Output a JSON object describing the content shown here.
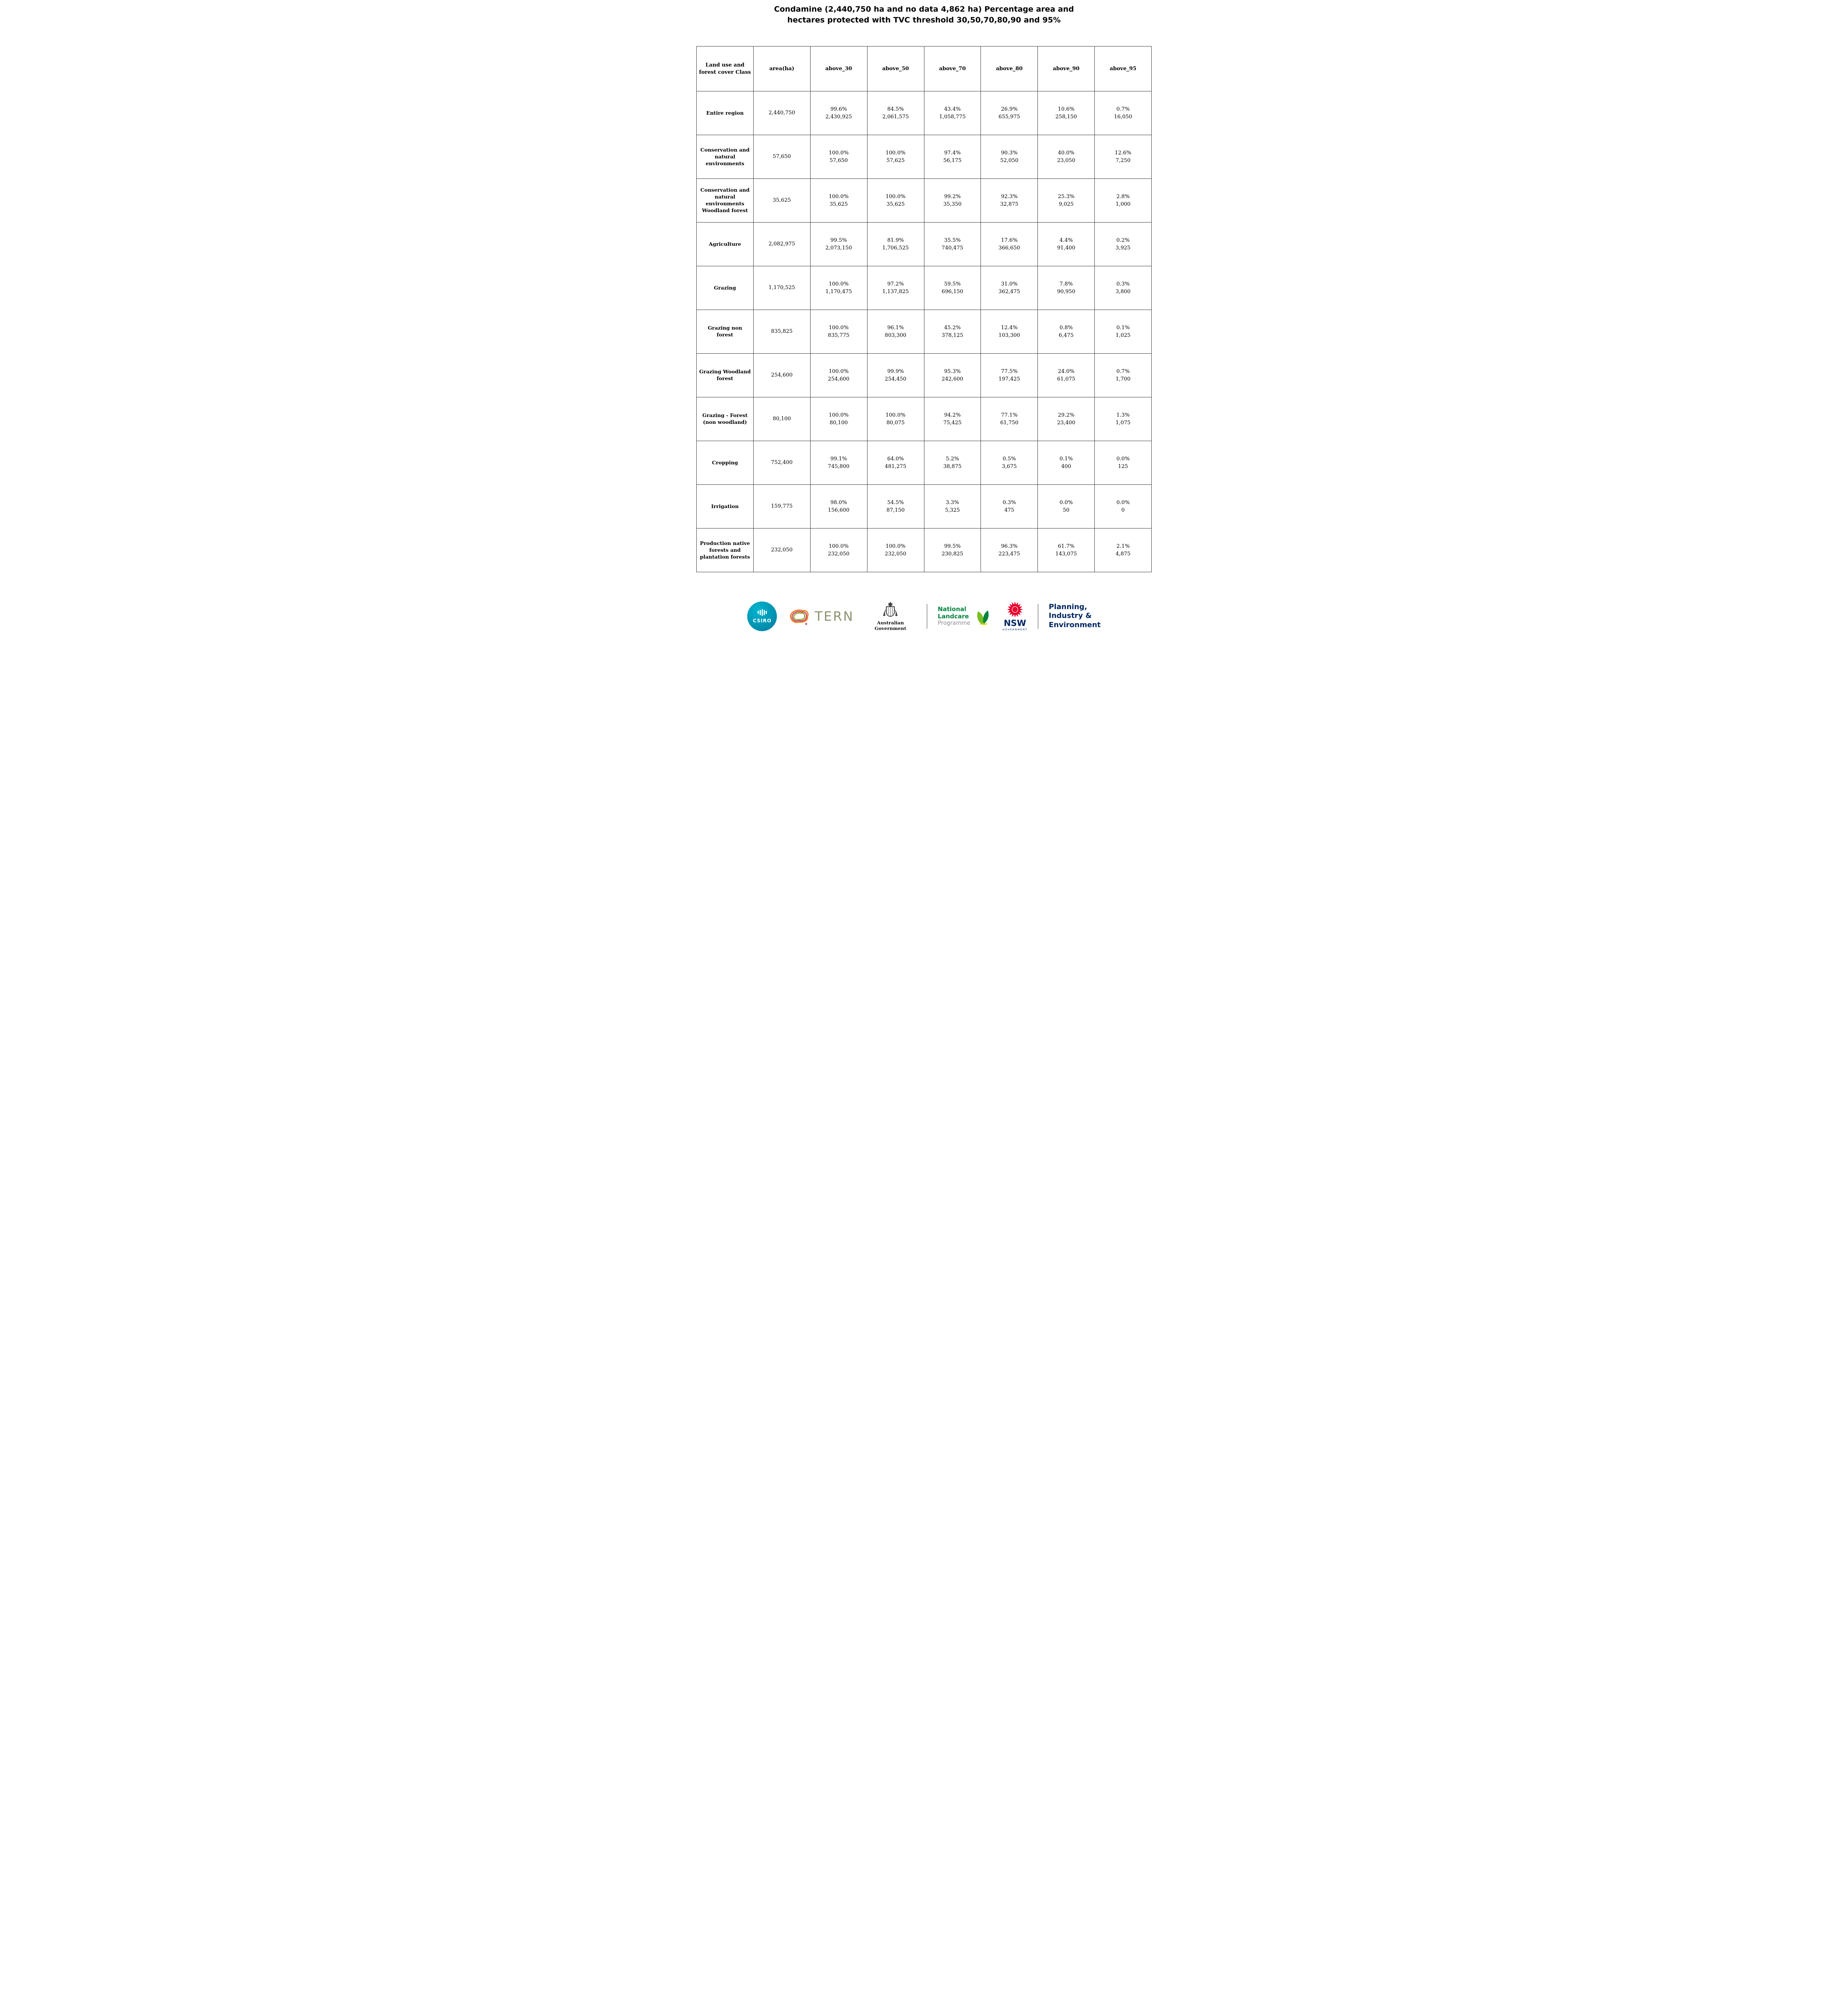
{
  "title": {
    "line1": "Condamine (2,440,750 ha and no data 4,862 ha) Percentage area and",
    "line2": "hectares protected with TVC threshold 30,50,70,80,90 and 95%"
  },
  "table": {
    "columns": [
      "Land use and forest cover Class",
      "area(ha)",
      "above_30",
      "above_50",
      "above_70",
      "above_80",
      "above_90",
      "above_95"
    ],
    "rows": [
      {
        "class": "Entire region",
        "area": "2,440,750",
        "cells": [
          [
            "99.6%",
            "2,430,925"
          ],
          [
            "84.5%",
            "2,061,575"
          ],
          [
            "43.4%",
            "1,058,775"
          ],
          [
            "26.9%",
            "655,975"
          ],
          [
            "10.6%",
            "258,150"
          ],
          [
            "0.7%",
            "16,050"
          ]
        ]
      },
      {
        "class": "Conservation and natural environments",
        "area": "57,650",
        "cells": [
          [
            "100.0%",
            "57,650"
          ],
          [
            "100.0%",
            "57,625"
          ],
          [
            "97.4%",
            "56,175"
          ],
          [
            "90.3%",
            "52,050"
          ],
          [
            "40.0%",
            "23,050"
          ],
          [
            "12.6%",
            "7,250"
          ]
        ]
      },
      {
        "class": "Conservation and natural environments Woodland forest",
        "area": "35,625",
        "cells": [
          [
            "100.0%",
            "35,625"
          ],
          [
            "100.0%",
            "35,625"
          ],
          [
            "99.2%",
            "35,350"
          ],
          [
            "92.3%",
            "32,875"
          ],
          [
            "25.3%",
            "9,025"
          ],
          [
            "2.8%",
            "1,000"
          ]
        ]
      },
      {
        "class": "Agriculture",
        "area": "2,082,975",
        "cells": [
          [
            "99.5%",
            "2,073,150"
          ],
          [
            "81.9%",
            "1,706,525"
          ],
          [
            "35.5%",
            "740,475"
          ],
          [
            "17.6%",
            "366,650"
          ],
          [
            "4.4%",
            "91,400"
          ],
          [
            "0.2%",
            "3,925"
          ]
        ]
      },
      {
        "class": "Grazing",
        "area": "1,170,525",
        "cells": [
          [
            "100.0%",
            "1,170,475"
          ],
          [
            "97.2%",
            "1,137,825"
          ],
          [
            "59.5%",
            "696,150"
          ],
          [
            "31.0%",
            "362,475"
          ],
          [
            "7.8%",
            "90,950"
          ],
          [
            "0.3%",
            "3,800"
          ]
        ]
      },
      {
        "class": "Grazing non forest",
        "area": "835,825",
        "cells": [
          [
            "100.0%",
            "835,775"
          ],
          [
            "96.1%",
            "803,300"
          ],
          [
            "45.2%",
            "378,125"
          ],
          [
            "12.4%",
            "103,300"
          ],
          [
            "0.8%",
            "6,475"
          ],
          [
            "0.1%",
            "1,025"
          ]
        ]
      },
      {
        "class": "Grazing Woodland forest",
        "area": "254,600",
        "cells": [
          [
            "100.0%",
            "254,600"
          ],
          [
            "99.9%",
            "254,450"
          ],
          [
            "95.3%",
            "242,600"
          ],
          [
            "77.5%",
            "197,425"
          ],
          [
            "24.0%",
            "61,075"
          ],
          [
            "0.7%",
            "1,700"
          ]
        ]
      },
      {
        "class": "Grazing - Forest (non woodland)",
        "area": "80,100",
        "cells": [
          [
            "100.0%",
            "80,100"
          ],
          [
            "100.0%",
            "80,075"
          ],
          [
            "94.2%",
            "75,425"
          ],
          [
            "77.1%",
            "61,750"
          ],
          [
            "29.2%",
            "23,400"
          ],
          [
            "1.3%",
            "1,075"
          ]
        ]
      },
      {
        "class": "Cropping",
        "area": "752,400",
        "cells": [
          [
            "99.1%",
            "745,800"
          ],
          [
            "64.0%",
            "481,275"
          ],
          [
            "5.2%",
            "38,875"
          ],
          [
            "0.5%",
            "3,675"
          ],
          [
            "0.1%",
            "400"
          ],
          [
            "0.0%",
            "125"
          ]
        ]
      },
      {
        "class": "Irrigation",
        "area": "159,775",
        "cells": [
          [
            "98.0%",
            "156,600"
          ],
          [
            "54.5%",
            "87,150"
          ],
          [
            "3.3%",
            "5,325"
          ],
          [
            "0.3%",
            "475"
          ],
          [
            "0.0%",
            "50"
          ],
          [
            "0.0%",
            "0"
          ]
        ]
      },
      {
        "class": "Production native forests and plantation forests",
        "area": "232,050",
        "cells": [
          [
            "100.0%",
            "232,050"
          ],
          [
            "100.0%",
            "232,050"
          ],
          [
            "99.5%",
            "230,825"
          ],
          [
            "96.3%",
            "223,475"
          ],
          [
            "61.7%",
            "143,075"
          ],
          [
            "2.1%",
            "4,875"
          ]
        ]
      }
    ]
  },
  "footer": {
    "csiro": {
      "label": "CSIRO"
    },
    "tern": {
      "label": "TERN"
    },
    "aus_gov": {
      "label": "Australian Government"
    },
    "landcare": {
      "line1": "National",
      "line2": "Landcare",
      "line3": "Programme"
    },
    "nsw": {
      "name": "NSW",
      "sub": "GOVERNMENT"
    },
    "planning": {
      "line1": "Planning,",
      "line2": "Industry &",
      "line3": "Environment"
    }
  },
  "colors": {
    "csiro_teal": "#0097b2",
    "tern_gray_olive": "#8e9070",
    "landcare_green": "#00843d",
    "landcare_leaf_green": "#78be20",
    "nsw_red": "#e4002b",
    "gov_navy": "#002664",
    "table_border": "#3c3c3c"
  }
}
